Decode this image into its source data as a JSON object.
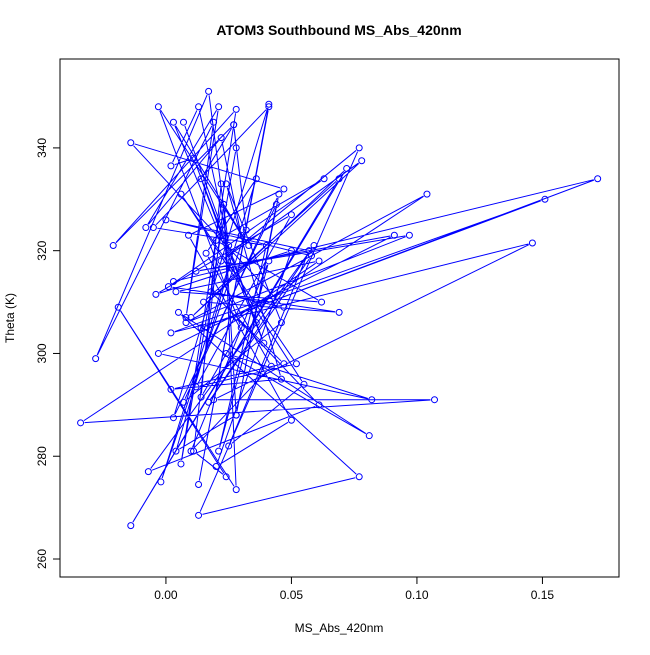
{
  "chart_data": {
    "type": "line",
    "title": "ATOM3 Southbound MS_Abs_420nm",
    "x_label": "MS_Abs_420nm",
    "y_label": "Theta (K)",
    "color": "#0000ff",
    "marker": "open-circle",
    "xlim": [
      -0.0422,
      0.1805
    ],
    "ylim": [
      256.5,
      357.3
    ],
    "xticks": [
      {
        "value": 0,
        "label": "0.00"
      },
      {
        "value": 0.05,
        "label": "0.05"
      },
      {
        "value": 0.1,
        "label": "0.10"
      },
      {
        "value": 0.15,
        "label": "0.15"
      }
    ],
    "yticks": [
      260,
      280,
      300,
      320,
      340
    ],
    "x": [
      0.003,
      0.172,
      0.014,
      0.151,
      0.002,
      0.146,
      0.019,
      0.107,
      -0.034,
      0.104,
      0.008,
      0.097,
      0.012,
      0.091,
      -0.003,
      0.082,
      0.024,
      0.081,
      0.005,
      0.077,
      0.013,
      0.077,
      0.022,
      0.078,
      0.01,
      0.072,
      -0.014,
      0.069,
      0.015,
      0.069,
      0.001,
      0.063,
      0.02,
      0.062,
      0.004,
      0.061,
      0.028,
      0.061,
      -0.007,
      0.059,
      0.017,
      0.058,
      0.0,
      0.057,
      0.025,
      0.055,
      0.006,
      0.052,
      0.012,
      0.05,
      -0.004,
      0.05,
      0.02,
      0.05,
      0.009,
      0.047,
      -0.014,
      0.047,
      0.018,
      0.047,
      0.002,
      0.046,
      0.024,
      0.046,
      0.007,
      0.045,
      0.028,
      0.044,
      0.003,
      0.041,
      0.013,
      0.041,
      -0.005,
      0.04,
      0.021,
      0.041,
      0.01,
      0.042,
      0.016,
      0.036,
      -0.002,
      0.032,
      0.027,
      0.028,
      0.006,
      0.028,
      -0.021,
      0.027,
      0.014,
      0.026,
      0.004,
      0.028,
      0.023,
      0.028,
      -0.019,
      0.024,
      0.011,
      0.023,
      0.03,
      0.022,
      -0.008,
      0.021,
      0.008,
      0.019,
      -0.028,
      0.017,
      0.025,
      0.013,
      0.002,
      0.011,
      0.036,
      0.007,
      0.039,
      0.003,
      0.033,
      -0.003,
      0.03,
      0.014,
      0.022
    ],
    "values": [
      314,
      334,
      305,
      330,
      304,
      321.5,
      291,
      291,
      286.5,
      331,
      306,
      323,
      316,
      323,
      300,
      291,
      300,
      284,
      308,
      276,
      268.5,
      340,
      318,
      337.5,
      307,
      336,
      266.5,
      334,
      310,
      308,
      313,
      334,
      322,
      310,
      312,
      318,
      307,
      290,
      277,
      321,
      290.5,
      319,
      326,
      320,
      282,
      294,
      331,
      298,
      293.5,
      327,
      311.5,
      320,
      278,
      287,
      323,
      332,
      341,
      309,
      312,
      298,
      293,
      295,
      333,
      306,
      290.5,
      331,
      288,
      329,
      287.5,
      348.5,
      274.5,
      348,
      324.5,
      321,
      281,
      318,
      281,
      297.5,
      319.5,
      334,
      275,
      324,
      344.5,
      340,
      278.5,
      347.5,
      321,
      344.5,
      334,
      318,
      281,
      288,
      329,
      273.5,
      309,
      276,
      281,
      329,
      323,
      342,
      324.5,
      348,
      307,
      345,
      299,
      351,
      321,
      348,
      336.5,
      338,
      306,
      345,
      302,
      345,
      321,
      348,
      305,
      291.5,
      333
    ]
  }
}
